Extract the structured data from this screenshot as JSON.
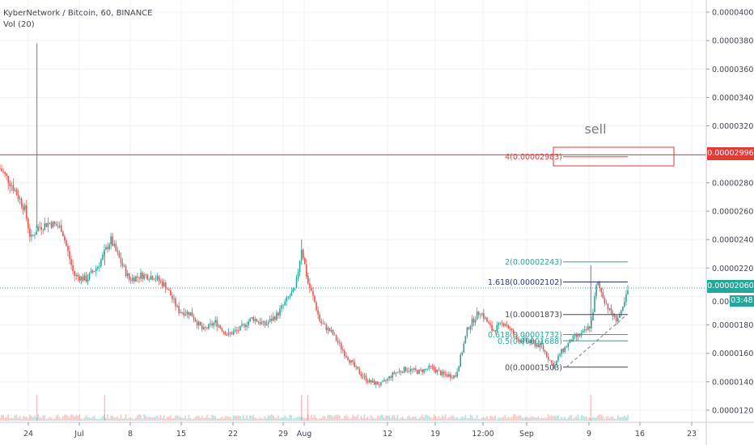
{
  "legend": {
    "symbol": "KyberNetwork / Bitcoin, 60, BINANCE",
    "indicator": "Vol (20)"
  },
  "price_axis": {
    "labels": [
      "0.00004000",
      "0.00003800",
      "0.00003600",
      "0.00003400",
      "0.00003200",
      "0.00002800",
      "0.00002600",
      "0.00002400",
      "0.00002200",
      "0.00001800",
      "0.00001600",
      "0.00001400",
      "0.00001200"
    ],
    "values": [
      4e-05,
      3.8e-05,
      3.6e-05,
      3.4e-05,
      3.2e-05,
      2.8e-05,
      2.6e-05,
      2.4e-05,
      2.2e-05,
      1.8e-05,
      1.6e-05,
      1.4e-05,
      1.2e-05
    ],
    "current_price": "0.00002060",
    "countdown": "03:48",
    "resistance_price": "0.00002996",
    "partial_label": "0.000"
  },
  "time_axis": {
    "labels": [
      "24",
      "Jul",
      "8",
      "15",
      "22",
      "29",
      "Aug",
      "12",
      "19",
      "12:00",
      "Sep",
      "9",
      "16",
      "23"
    ]
  },
  "annotations": {
    "sell_text": "sell",
    "fib_levels": [
      {
        "label": "4(0.00002983)",
        "price": 2.983e-05,
        "color": "#e53935"
      },
      {
        "label": "2(0.00002243)",
        "price": 2.243e-05,
        "color": "#26a69a"
      },
      {
        "label": "1.618(0.00002102)",
        "price": 2.102e-05,
        "color": "#283593"
      },
      {
        "label": "1(0.00001873)",
        "price": 1.873e-05,
        "color": "#434651"
      },
      {
        "label": "0.618(0.00001732)",
        "price": 1.732e-05,
        "color": "#26a69a"
      },
      {
        "label": "0.5(0.00001688)",
        "price": 1.688e-05,
        "color": "#26a69a"
      },
      {
        "label": "0(0.00001503)",
        "price": 1.503e-05,
        "color": "#434651"
      }
    ]
  },
  "colors": {
    "up": "#26a69a",
    "down": "#ef5350",
    "resistance": "#e53935",
    "current_price": "#26a69a",
    "grid": "#eef0f4"
  },
  "chart_data": {
    "type": "candlestick",
    "series": [
      {
        "name": "KyberNetwork / Bitcoin",
        "anchors": [
          [
            0,
            2.9e-05
          ],
          [
            2,
            2.78e-05
          ],
          [
            4,
            2.62e-05
          ],
          [
            5,
            2.4e-05
          ],
          [
            6,
            2.48e-05
          ],
          [
            8,
            2.52e-05
          ],
          [
            10,
            2.48e-05
          ],
          [
            12,
            2.15e-05
          ],
          [
            14,
            2.12e-05
          ],
          [
            16,
            2.22e-05
          ],
          [
            18,
            2.4e-05
          ],
          [
            19,
            2.3e-05
          ],
          [
            21,
            2.12e-05
          ],
          [
            23,
            2.15e-05
          ],
          [
            25,
            2.14e-05
          ],
          [
            27,
            2.07e-05
          ],
          [
            29,
            1.9e-05
          ],
          [
            31,
            1.88e-05
          ],
          [
            33,
            1.76e-05
          ],
          [
            35,
            1.82e-05
          ],
          [
            37,
            1.73e-05
          ],
          [
            39,
            1.77e-05
          ],
          [
            41,
            1.85e-05
          ],
          [
            43,
            1.8e-05
          ],
          [
            45,
            1.87e-05
          ],
          [
            47,
            2e-05
          ],
          [
            48,
            2.05e-05
          ],
          [
            49,
            2.35e-05
          ],
          [
            50,
            2.1e-05
          ],
          [
            51,
            1.98e-05
          ],
          [
            52,
            1.82e-05
          ],
          [
            54,
            1.74e-05
          ],
          [
            56,
            1.6e-05
          ],
          [
            58,
            1.48e-05
          ],
          [
            60,
            1.4e-05
          ],
          [
            62,
            1.38e-05
          ],
          [
            64,
            1.46e-05
          ],
          [
            66,
            1.49e-05
          ],
          [
            68,
            1.47e-05
          ],
          [
            70,
            1.5e-05
          ],
          [
            72,
            1.45e-05
          ],
          [
            74,
            1.44e-05
          ],
          [
            75,
            1.6e-05
          ],
          [
            76,
            1.78e-05
          ],
          [
            78,
            1.9e-05
          ],
          [
            80,
            1.76e-05
          ],
          [
            82,
            1.82e-05
          ],
          [
            84,
            1.7e-05
          ],
          [
            86,
            1.68e-05
          ],
          [
            88,
            1.65e-05
          ],
          [
            90,
            1.5e-05
          ],
          [
            91,
            1.6e-05
          ],
          [
            93,
            1.7e-05
          ],
          [
            95,
            1.75e-05
          ],
          [
            96,
            1.8e-05
          ],
          [
            97,
            2.1e-05
          ],
          [
            98,
            2e-05
          ],
          [
            99,
            1.9e-05
          ],
          [
            100,
            1.84e-05
          ],
          [
            101,
            1.88e-05
          ],
          [
            102,
            2.04e-05
          ]
        ],
        "spikes": [
          [
            6,
            3.78e-05
          ],
          [
            17,
            2.22e-05
          ],
          [
            49,
            2.4e-05
          ],
          [
            50,
            2.15e-05
          ],
          [
            96,
            2.22e-05
          ]
        ]
      }
    ],
    "resistance": 2.996e-05,
    "current": 2.06e-05,
    "ylim": [
      1.13e-05,
      4.05e-05
    ]
  }
}
